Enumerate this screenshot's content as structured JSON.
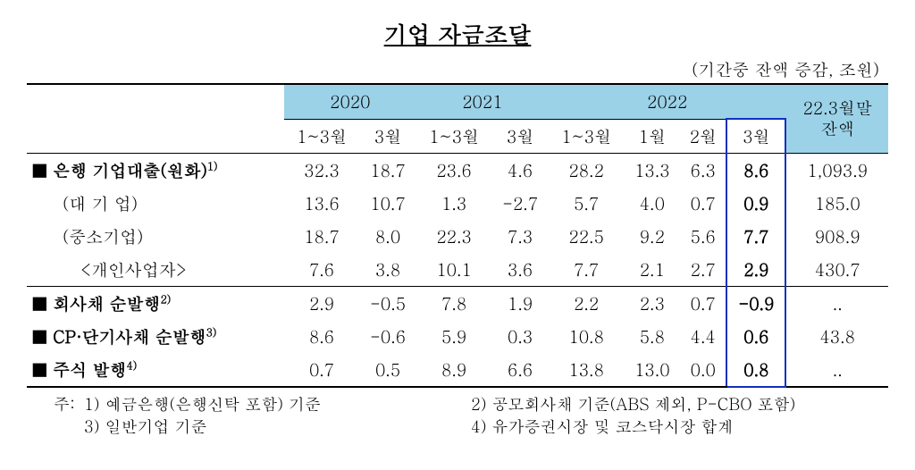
{
  "title": "기업 자금조달",
  "unit": "(기간중 잔액 증감, 조원)",
  "year_headers": [
    "2020",
    "2021",
    "2022"
  ],
  "balance_header": "22.3월말\n잔액",
  "sub_headers": {
    "y2020": [
      "1~3월",
      "3월"
    ],
    "y2021": [
      "1~3월",
      "3월"
    ],
    "y2022": [
      "1~3월",
      "1월",
      "2월",
      "3월"
    ]
  },
  "rows": [
    {
      "label": "■ 은행 기업대출(원화)",
      "sup": "1)",
      "bold": true,
      "indent": 0,
      "vals": [
        "32.3",
        "18.7",
        "23.6",
        "4.6",
        "28.2",
        "13.3",
        "6.3",
        "8.6",
        "1,093.9"
      ]
    },
    {
      "label": "(대 기 업)",
      "sup": "",
      "bold": false,
      "indent": 1,
      "vals": [
        "13.6",
        "10.7",
        "1.3",
        "-2.7",
        "5.7",
        "4.0",
        "0.7",
        "0.9",
        "185.0"
      ]
    },
    {
      "label": "(중소기업)",
      "sup": "",
      "bold": false,
      "indent": 1,
      "vals": [
        "18.7",
        "8.0",
        "22.3",
        "7.3",
        "22.5",
        "9.2",
        "5.6",
        "7.7",
        "908.9"
      ]
    },
    {
      "label": "<개인사업자>",
      "sup": "",
      "bold": false,
      "indent": 2,
      "vals": [
        "7.6",
        "3.8",
        "10.1",
        "3.6",
        "7.7",
        "2.1",
        "2.7",
        "2.9",
        "430.7"
      ]
    },
    {
      "label": "■ 회사채 순발행",
      "sup": "2)",
      "bold": true,
      "indent": 0,
      "vals": [
        "2.9",
        "-0.5",
        "7.8",
        "1.9",
        "2.2",
        "2.3",
        "0.7",
        "-0.9",
        ".."
      ],
      "topline": true
    },
    {
      "label": "■ CP·단기사채 순발행",
      "sup": "3)",
      "bold": true,
      "indent": 0,
      "vals": [
        "8.6",
        "-0.6",
        "5.9",
        "0.3",
        "10.8",
        "5.8",
        "4.4",
        "0.6",
        "43.8"
      ]
    },
    {
      "label": "■ 주식 발행",
      "sup": "4)",
      "bold": true,
      "indent": 0,
      "vals": [
        "0.7",
        "0.5",
        "8.9",
        "6.6",
        "13.8",
        "13.0",
        "0.0",
        "0.8",
        ".."
      ]
    }
  ],
  "footnotes": {
    "label": "주:",
    "items": [
      "1) 예금은행(은행신탁 포함) 기준",
      "2) 공모회사채 기준(ABS 제외, P-CBO 포함)",
      "3) 일반기업 기준",
      "4) 유가증권시장 및 코스닥시장 합계"
    ]
  },
  "colors": {
    "header_bg": "#9cd2e8",
    "highlight_border": "#1030c0",
    "text": "#000000",
    "background": "#ffffff"
  }
}
